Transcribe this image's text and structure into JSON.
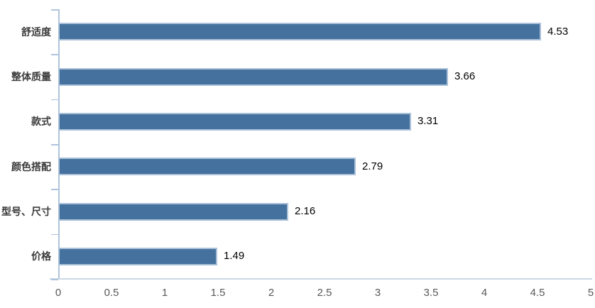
{
  "chart_data": {
    "type": "bar",
    "orientation": "horizontal",
    "title": "",
    "xlabel": "",
    "ylabel": "",
    "categories": [
      "舒适度",
      "整体质量",
      "款式",
      "颜色搭配",
      "型号、尺寸",
      "价格"
    ],
    "values": [
      4.53,
      3.66,
      3.31,
      2.79,
      2.16,
      1.49
    ],
    "value_labels": [
      "4.53",
      "3.66",
      "3.31",
      "2.79",
      "2.16",
      "1.49"
    ],
    "x_tick_labels": [
      "0",
      "0.5",
      "1",
      "1.5",
      "2",
      "2.5",
      "3",
      "3.5",
      "4",
      "4.5",
      "5"
    ],
    "x_tick_values": [
      0,
      0.5,
      1,
      1.5,
      2,
      2.5,
      3,
      3.5,
      4,
      4.5,
      5
    ],
    "xlim": [
      0,
      5
    ],
    "grid": false,
    "legend": false,
    "data_labels_shown": true,
    "colors": {
      "bar_fill": "#44719E",
      "bar_border": "#A9C0D8",
      "axis_line": "#AEC4DD",
      "x_axis_line": "#CCD8E5",
      "tick_label": "#595959",
      "value_label": "#000000",
      "category_label": "#3B3B3B"
    }
  }
}
